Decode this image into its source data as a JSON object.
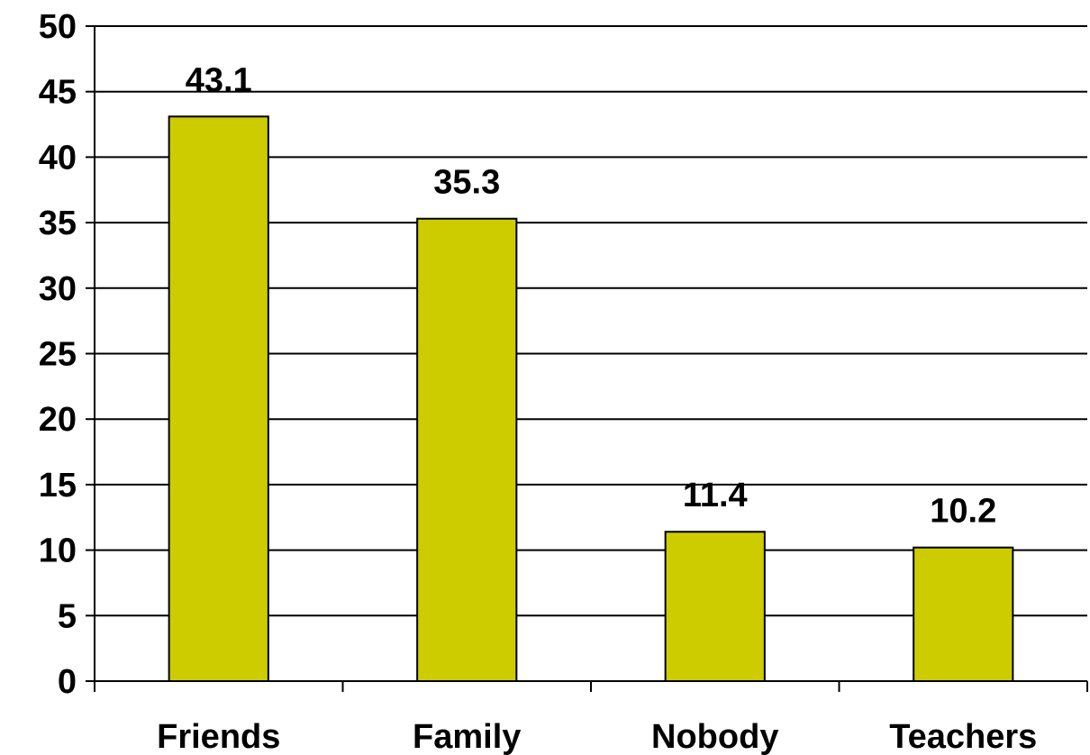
{
  "chart_data": {
    "type": "bar",
    "categories": [
      "Friends",
      "Family",
      "Nobody",
      "Teachers"
    ],
    "values": [
      43.1,
      35.3,
      11.4,
      10.2
    ],
    "data_labels": [
      "43.1",
      "35.3",
      "11.4",
      "10.2"
    ],
    "title": "",
    "xlabel": "",
    "ylabel": "",
    "ylim": [
      0,
      50
    ],
    "yticks": [
      0,
      5,
      10,
      15,
      20,
      25,
      30,
      35,
      40,
      45,
      50
    ],
    "grid": true,
    "legend": "none",
    "bar_color": "#CCCC00",
    "bar_edge_color": "#000000",
    "grid_color": "#000000"
  }
}
